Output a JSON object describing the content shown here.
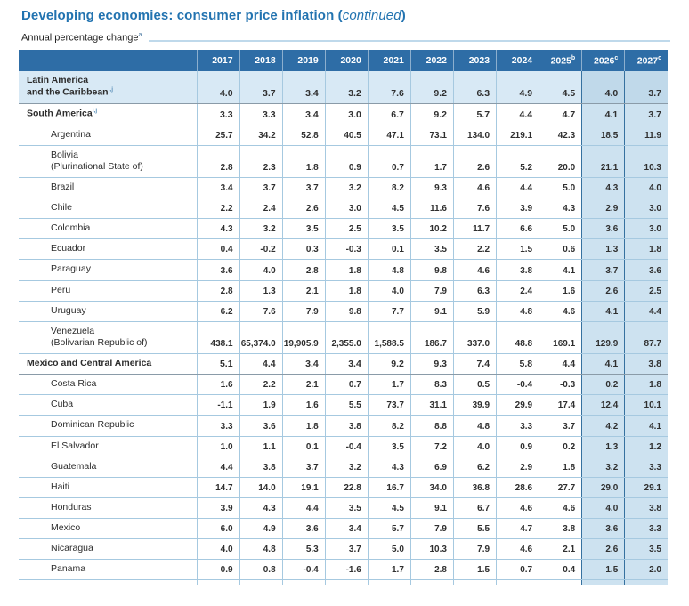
{
  "header": {
    "title": "Developing economies: consumer price inflation",
    "continued": "(continued)",
    "subtitle": "Annual percentage change",
    "subtitle_footnote": "a"
  },
  "table": {
    "corner_label": "",
    "years": [
      {
        "label": "2017",
        "sup": ""
      },
      {
        "label": "2018",
        "sup": ""
      },
      {
        "label": "2019",
        "sup": ""
      },
      {
        "label": "2020",
        "sup": ""
      },
      {
        "label": "2021",
        "sup": ""
      },
      {
        "label": "2022",
        "sup": ""
      },
      {
        "label": "2023",
        "sup": ""
      },
      {
        "label": "2024",
        "sup": ""
      },
      {
        "label": "2025",
        "sup": "b"
      },
      {
        "label": "2026",
        "sup": "c"
      },
      {
        "label": "2027",
        "sup": "c"
      }
    ],
    "forecast_year_count": 2,
    "rows": [
      {
        "lines": [
          "Latin America",
          "and the Caribbean"
        ],
        "sup": "i,j",
        "type": "region",
        "shaded": true,
        "strong_bottom": true,
        "values": [
          "4.0",
          "3.7",
          "3.4",
          "3.2",
          "7.6",
          "9.2",
          "6.3",
          "4.9",
          "4.5",
          "4.0",
          "3.7"
        ]
      },
      {
        "lines": [
          "South America"
        ],
        "sup": "i,j",
        "type": "region",
        "shaded": false,
        "strong_bottom": false,
        "values": [
          "3.3",
          "3.3",
          "3.4",
          "3.0",
          "6.7",
          "9.2",
          "5.7",
          "4.4",
          "4.7",
          "4.1",
          "3.7"
        ]
      },
      {
        "lines": [
          "Argentina"
        ],
        "sup": "",
        "type": "country",
        "shaded": false,
        "strong_bottom": false,
        "values": [
          "25.7",
          "34.2",
          "52.8",
          "40.5",
          "47.1",
          "73.1",
          "134.0",
          "219.1",
          "42.3",
          "18.5",
          "11.9"
        ]
      },
      {
        "lines": [
          "Bolivia",
          "(Plurinational State of)"
        ],
        "sup": "",
        "type": "country",
        "shaded": false,
        "strong_bottom": false,
        "values": [
          "2.8",
          "2.3",
          "1.8",
          "0.9",
          "0.7",
          "1.7",
          "2.6",
          "5.2",
          "20.0",
          "21.1",
          "10.3"
        ]
      },
      {
        "lines": [
          "Brazil"
        ],
        "sup": "",
        "type": "country",
        "shaded": false,
        "strong_bottom": false,
        "values": [
          "3.4",
          "3.7",
          "3.7",
          "3.2",
          "8.2",
          "9.3",
          "4.6",
          "4.4",
          "5.0",
          "4.3",
          "4.0"
        ]
      },
      {
        "lines": [
          "Chile"
        ],
        "sup": "",
        "type": "country",
        "shaded": false,
        "strong_bottom": false,
        "values": [
          "2.2",
          "2.4",
          "2.6",
          "3.0",
          "4.5",
          "11.6",
          "7.6",
          "3.9",
          "4.3",
          "2.9",
          "3.0"
        ]
      },
      {
        "lines": [
          "Colombia"
        ],
        "sup": "",
        "type": "country",
        "shaded": false,
        "strong_bottom": false,
        "values": [
          "4.3",
          "3.2",
          "3.5",
          "2.5",
          "3.5",
          "10.2",
          "11.7",
          "6.6",
          "5.0",
          "3.6",
          "3.0"
        ]
      },
      {
        "lines": [
          "Ecuador"
        ],
        "sup": "",
        "type": "country",
        "shaded": false,
        "strong_bottom": false,
        "values": [
          "0.4",
          "-0.2",
          "0.3",
          "-0.3",
          "0.1",
          "3.5",
          "2.2",
          "1.5",
          "0.6",
          "1.3",
          "1.8"
        ]
      },
      {
        "lines": [
          "Paraguay"
        ],
        "sup": "",
        "type": "country",
        "shaded": false,
        "strong_bottom": false,
        "values": [
          "3.6",
          "4.0",
          "2.8",
          "1.8",
          "4.8",
          "9.8",
          "4.6",
          "3.8",
          "4.1",
          "3.7",
          "3.6"
        ]
      },
      {
        "lines": [
          "Peru"
        ],
        "sup": "",
        "type": "country",
        "shaded": false,
        "strong_bottom": false,
        "values": [
          "2.8",
          "1.3",
          "2.1",
          "1.8",
          "4.0",
          "7.9",
          "6.3",
          "2.4",
          "1.6",
          "2.6",
          "2.5"
        ]
      },
      {
        "lines": [
          "Uruguay"
        ],
        "sup": "",
        "type": "country",
        "shaded": false,
        "strong_bottom": false,
        "values": [
          "6.2",
          "7.6",
          "7.9",
          "9.8",
          "7.7",
          "9.1",
          "5.9",
          "4.8",
          "4.6",
          "4.1",
          "4.4"
        ]
      },
      {
        "lines": [
          "Venezuela",
          "(Bolivarian Republic of)"
        ],
        "sup": "",
        "type": "country",
        "shaded": false,
        "strong_bottom": false,
        "values": [
          "438.1",
          "65,374.0",
          "19,905.9",
          "2,355.0",
          "1,588.5",
          "186.7",
          "337.0",
          "48.8",
          "169.1",
          "129.9",
          "87.7"
        ]
      },
      {
        "lines": [
          "Mexico and Central America"
        ],
        "sup": "",
        "type": "region",
        "shaded": false,
        "strong_bottom": true,
        "values": [
          "5.1",
          "4.4",
          "3.4",
          "3.4",
          "9.2",
          "9.3",
          "7.4",
          "5.8",
          "4.4",
          "4.1",
          "3.8"
        ]
      },
      {
        "lines": [
          "Costa Rica"
        ],
        "sup": "",
        "type": "country",
        "shaded": false,
        "strong_bottom": false,
        "values": [
          "1.6",
          "2.2",
          "2.1",
          "0.7",
          "1.7",
          "8.3",
          "0.5",
          "-0.4",
          "-0.3",
          "0.2",
          "1.8"
        ]
      },
      {
        "lines": [
          "Cuba"
        ],
        "sup": "",
        "type": "country",
        "shaded": false,
        "strong_bottom": false,
        "values": [
          "-1.1",
          "1.9",
          "1.6",
          "5.5",
          "73.7",
          "31.1",
          "39.9",
          "29.9",
          "17.4",
          "12.4",
          "10.1"
        ]
      },
      {
        "lines": [
          "Dominican Republic"
        ],
        "sup": "",
        "type": "country",
        "shaded": false,
        "strong_bottom": false,
        "values": [
          "3.3",
          "3.6",
          "1.8",
          "3.8",
          "8.2",
          "8.8",
          "4.8",
          "3.3",
          "3.7",
          "4.2",
          "4.1"
        ]
      },
      {
        "lines": [
          "El Salvador"
        ],
        "sup": "",
        "type": "country",
        "shaded": false,
        "strong_bottom": false,
        "values": [
          "1.0",
          "1.1",
          "0.1",
          "-0.4",
          "3.5",
          "7.2",
          "4.0",
          "0.9",
          "0.2",
          "1.3",
          "1.2"
        ]
      },
      {
        "lines": [
          "Guatemala"
        ],
        "sup": "",
        "type": "country",
        "shaded": false,
        "strong_bottom": false,
        "values": [
          "4.4",
          "3.8",
          "3.7",
          "3.2",
          "4.3",
          "6.9",
          "6.2",
          "2.9",
          "1.8",
          "3.2",
          "3.3"
        ]
      },
      {
        "lines": [
          "Haiti"
        ],
        "sup": "",
        "type": "country",
        "shaded": false,
        "strong_bottom": false,
        "values": [
          "14.7",
          "14.0",
          "19.1",
          "22.8",
          "16.7",
          "34.0",
          "36.8",
          "28.6",
          "27.7",
          "29.0",
          "29.1"
        ]
      },
      {
        "lines": [
          "Honduras"
        ],
        "sup": "",
        "type": "country",
        "shaded": false,
        "strong_bottom": false,
        "values": [
          "3.9",
          "4.3",
          "4.4",
          "3.5",
          "4.5",
          "9.1",
          "6.7",
          "4.6",
          "4.6",
          "4.0",
          "3.8"
        ]
      },
      {
        "lines": [
          "Mexico"
        ],
        "sup": "",
        "type": "country",
        "shaded": false,
        "strong_bottom": false,
        "values": [
          "6.0",
          "4.9",
          "3.6",
          "3.4",
          "5.7",
          "7.9",
          "5.5",
          "4.7",
          "3.8",
          "3.6",
          "3.3"
        ]
      },
      {
        "lines": [
          "Nicaragua"
        ],
        "sup": "",
        "type": "country",
        "shaded": false,
        "strong_bottom": false,
        "values": [
          "4.0",
          "4.8",
          "5.3",
          "3.7",
          "5.0",
          "10.3",
          "7.9",
          "4.6",
          "2.1",
          "2.6",
          "3.5"
        ]
      },
      {
        "lines": [
          "Panama"
        ],
        "sup": "",
        "type": "country",
        "shaded": false,
        "strong_bottom": false,
        "values": [
          "0.9",
          "0.8",
          "-0.4",
          "-1.6",
          "1.7",
          "2.8",
          "1.5",
          "0.7",
          "0.4",
          "1.5",
          "2.0"
        ]
      }
    ],
    "partial_next_row_visible": true
  },
  "colors": {
    "title_blue": "#2273b0",
    "header_bg": "#2e6da6",
    "shaded_row_bg": "#d8e9f5",
    "forecast_col_bg": "#cde2f0",
    "forecast_col_bg_on_shaded": "#c0d9ea",
    "grid_line": "#a6c9e0",
    "strong_line": "#8a9ba8",
    "forecast_boundary": "#36719f"
  }
}
